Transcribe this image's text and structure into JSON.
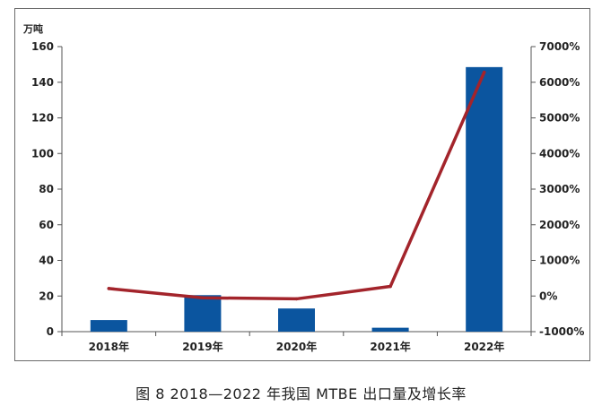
{
  "caption": "图 8  2018—2022 年我国 MTBE 出口量及增长率",
  "chart_data": {
    "type": "bar",
    "categories": [
      "2018年",
      "2019年",
      "2020年",
      "2021年",
      "2022年"
    ],
    "series": [
      {
        "values": [
          6.5,
          20.5,
          13,
          2.2,
          148.5
        ],
        "axis": "left",
        "kind": "bar",
        "color": "#0b559f"
      },
      {
        "values": [
          210,
          -50,
          -80,
          270,
          6280
        ],
        "axis": "right",
        "kind": "line",
        "color": "#a3242b"
      }
    ],
    "y_left": {
      "unit": "万吨",
      "ylim": [
        0,
        160
      ],
      "ticks": [
        0,
        20,
        40,
        60,
        80,
        100,
        120,
        140,
        160
      ]
    },
    "y_right": {
      "ylim": [
        -1000,
        7000
      ],
      "ticks": [
        "-1000%",
        "0%",
        "1000%",
        "2000%",
        "3000%",
        "4000%",
        "5000%",
        "6000%",
        "7000%"
      ]
    },
    "grid": false,
    "legend": "none"
  }
}
